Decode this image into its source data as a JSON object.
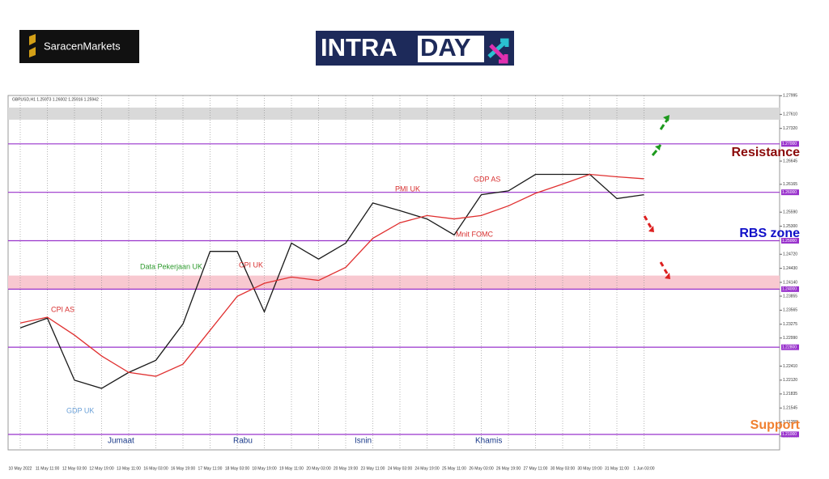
{
  "header": {
    "brand": "SaracenMarkets",
    "logo_left": "INTRA",
    "logo_right": "DAY"
  },
  "chart_data": {
    "type": "line",
    "info": "GBPUSD,H1  1.25973 1.26002 1.25916 1.25942",
    "categories": [
      "10 May 2022",
      "11 May 11:00",
      "12 May 03:00",
      "12 May 19:00",
      "13 May 11:00",
      "16 May 03:00",
      "16 May 19:00",
      "17 May 11:00",
      "18 May 03:00",
      "18 May 19:00",
      "19 May 11:00",
      "20 May 03:00",
      "20 May 19:00",
      "23 May 11:00",
      "24 May 03:00",
      "24 May 19:00",
      "25 May 11:00",
      "26 May 03:00",
      "26 May 19:00",
      "27 May 11:00",
      "30 May 03:00",
      "30 May 19:00",
      "31 May 11:00",
      "1 Jun 03:00"
    ],
    "series": [
      {
        "name": "GBPUSD",
        "color": "#1a1a1a",
        "values": [
          1.232,
          1.234,
          1.2212,
          1.2195,
          1.2228,
          1.2253,
          1.2328,
          1.2478,
          1.2478,
          1.2353,
          1.2495,
          1.2462,
          1.2495,
          1.2578,
          1.2562,
          1.2545,
          1.2512,
          1.2595,
          1.2603,
          1.2637,
          1.2637,
          1.2637,
          1.2587,
          1.2595
        ]
      },
      {
        "name": "MA",
        "color": "#e03030",
        "values": [
          1.233,
          1.2342,
          1.2305,
          1.2262,
          1.2228,
          1.222,
          1.2245,
          1.2315,
          1.2385,
          1.2412,
          1.2425,
          1.2418,
          1.2445,
          1.2505,
          1.2537,
          1.2552,
          1.2545,
          1.2552,
          1.2572,
          1.2598,
          1.2617,
          1.2637,
          1.2632,
          1.2628
        ]
      }
    ],
    "ylim": [
      1.2068,
      1.28
    ],
    "yticks": [
      {
        "value": 1.27995,
        "label": "1.27995"
      },
      {
        "value": 1.2761,
        "label": "1.27610"
      },
      {
        "value": 1.2732,
        "label": "1.27320"
      },
      {
        "value": 1.26645,
        "label": "1.26645"
      },
      {
        "value": 1.26165,
        "label": "1.26165"
      },
      {
        "value": 1.2559,
        "label": "1.25590"
      },
      {
        "value": 1.253,
        "label": "1.25300"
      },
      {
        "value": 1.2472,
        "label": "1.24720"
      },
      {
        "value": 1.2443,
        "label": "1.24430"
      },
      {
        "value": 1.2414,
        "label": "1.24140"
      },
      {
        "value": 1.23855,
        "label": "1.23855"
      },
      {
        "value": 1.23565,
        "label": "1.23565"
      },
      {
        "value": 1.23275,
        "label": "1.23275"
      },
      {
        "value": 1.2299,
        "label": "1.22990"
      },
      {
        "value": 1.2241,
        "label": "1.22410"
      },
      {
        "value": 1.2212,
        "label": "1.22120"
      },
      {
        "value": 1.21835,
        "label": "1.21835"
      },
      {
        "value": 1.21545,
        "label": "1.21545"
      },
      {
        "value": 1.21255,
        "label": "1.21255"
      },
      {
        "value": 1.20965,
        "label": "1.20965"
      }
    ],
    "levels": [
      {
        "value": 1.27,
        "label": "1.27000"
      },
      {
        "value": 1.26,
        "label": "1.26000"
      },
      {
        "value": 1.25,
        "label": "1.25000"
      },
      {
        "value": 1.24,
        "label": "1.24000"
      },
      {
        "value": 1.228,
        "label": "1.22800"
      },
      {
        "value": 1.21,
        "label": "1.21000"
      }
    ],
    "bands": [
      {
        "from": 1.275,
        "to": 1.2775,
        "color": "#d9d9d9"
      },
      {
        "from": 1.24,
        "to": 1.2428,
        "color": "#f8c8d0"
      }
    ],
    "zones": [
      {
        "text": "Resistance",
        "color": "#8b0a0a"
      },
      {
        "text": "RBS zone",
        "color": "#1010c8"
      },
      {
        "text": "Support",
        "color": "#f08030"
      }
    ],
    "annotations": [
      {
        "text": "CPI AS",
        "color": "#d83030"
      },
      {
        "text": "GDP UK",
        "color": "#6aa0d8"
      },
      {
        "text": "Data Pekerjaan UK",
        "color": "#2e9a2e"
      },
      {
        "text": "CPI UK",
        "color": "#d83030"
      },
      {
        "text": "PMI UK",
        "color": "#d83030"
      },
      {
        "text": "GDP AS",
        "color": "#d83030"
      },
      {
        "text": "Mnit FOMC",
        "color": "#d83030"
      }
    ],
    "days": [
      "Jumaat",
      "Rabu",
      "Isnin",
      "Khamis"
    ],
    "grid": true
  }
}
